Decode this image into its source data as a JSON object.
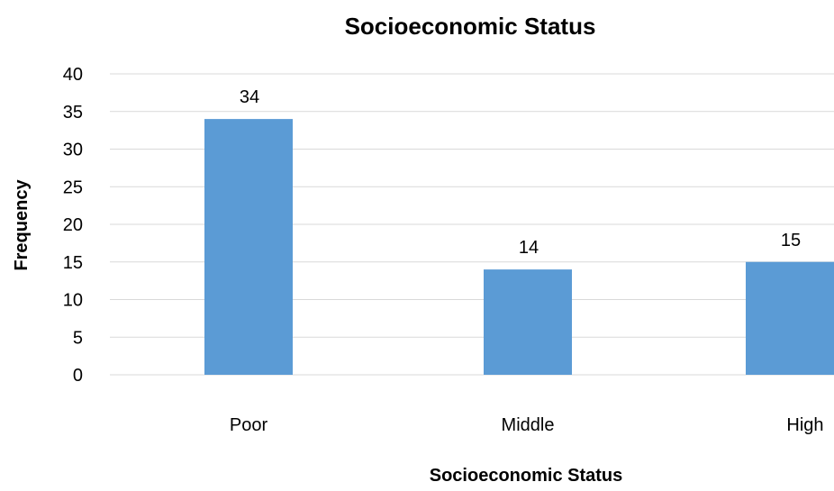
{
  "chart_data": {
    "type": "bar",
    "title": "Socioeconomic Status",
    "xlabel": "Socioeconomic Status",
    "ylabel": "Frequency",
    "categories": [
      "Poor",
      "Middle",
      "High"
    ],
    "values": [
      34,
      14,
      15
    ],
    "data_labels": [
      "34",
      "14",
      "15"
    ],
    "ylim": [
      0,
      40
    ],
    "yticks": [
      0,
      5,
      10,
      15,
      20,
      25,
      30,
      35,
      40
    ],
    "grid": true,
    "legend": "none",
    "bar_color": "#5b9bd5",
    "grid_color": "#d9d9d9"
  }
}
